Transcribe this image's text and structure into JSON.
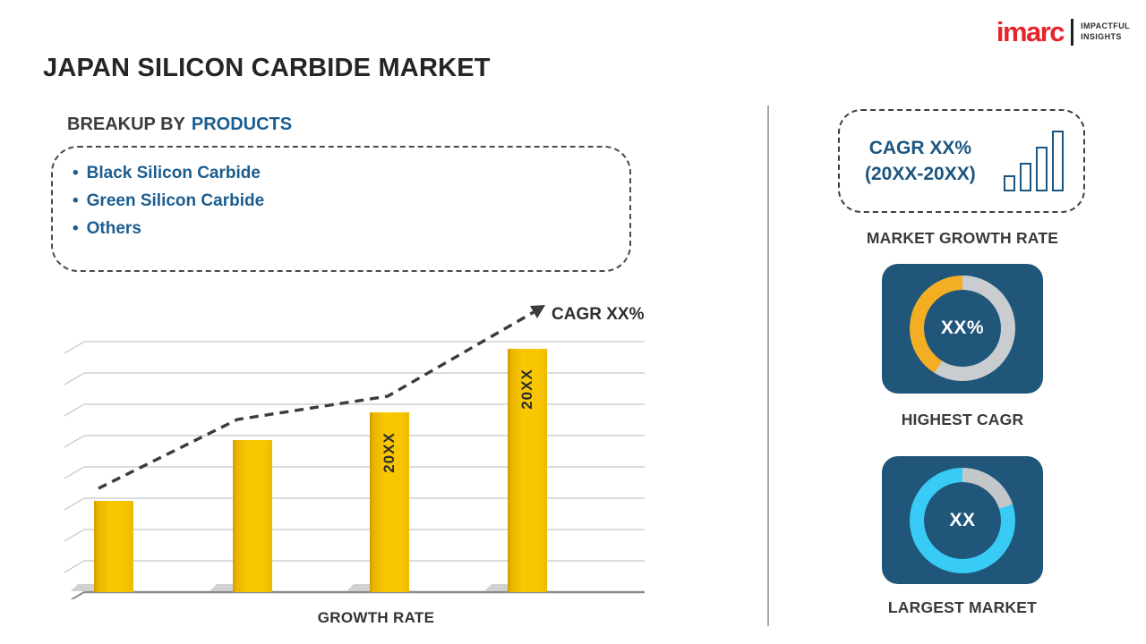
{
  "header": {
    "title": "JAPAN SILICON CARBIDE MARKET",
    "logo": {
      "brand": "imarc",
      "tagline": [
        "IMPACTFUL",
        "INSIGHTS"
      ]
    }
  },
  "breakup": {
    "heading_prefix": "BREAKUP BY",
    "heading_highlight": "PRODUCTS",
    "items": [
      "Black Silicon Carbide",
      "Green Silicon Carbide",
      "Others"
    ]
  },
  "chart_data": {
    "type": "bar",
    "title": "",
    "categories": [
      "",
      "",
      "20XX",
      "20XX"
    ],
    "values": [
      36,
      60,
      71,
      96
    ],
    "ylim": [
      0,
      100
    ],
    "xlabel": "GROWTH RATE",
    "ylabel": "",
    "grid": true,
    "bar_color": "#F5C400",
    "trend": {
      "label": "CAGR XX%",
      "style": "dashed-arrow-up"
    }
  },
  "right_panel": {
    "cagr_box": {
      "line1": "CAGR XX%",
      "line2": "(20XX-20XX)",
      "icon": "bar-chart-icon"
    },
    "market_growth_rate_label": "MARKET GROWTH RATE",
    "highest_cagr": {
      "value": "XX%",
      "label": "HIGHEST CAGR",
      "ring_colors": [
        "#F3AE24",
        "#C9CDD0"
      ]
    },
    "largest_market": {
      "value": "XX",
      "label": "LARGEST MARKET",
      "ring_colors": [
        "#38CBF5",
        "#C9CDD0"
      ]
    }
  },
  "colors": {
    "accent_blue": "#1C5D8F",
    "bar_gold": "#F5C400",
    "tile_blue": "#20567A",
    "ring_yellow": "#F3AE24",
    "ring_cyan": "#38CBF5",
    "ring_gray": "#C9CDD0",
    "brand_red": "#E5252C",
    "divider_gray": "#A2A7A7"
  }
}
